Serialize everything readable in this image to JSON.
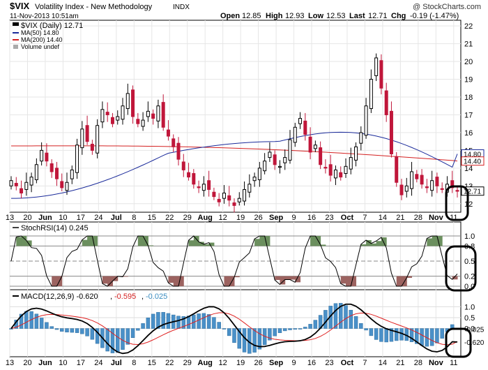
{
  "header": {
    "symbol": "$VIX",
    "name": "Volatility Index - New Methodology",
    "exchange": "INDX",
    "timestamp": "11-Nov-2013 10:51am",
    "watermark": "@ StockCharts.com",
    "open_label": "Open",
    "open": "12.85",
    "high_label": "High",
    "high": "12.93",
    "low_label": "Low",
    "low": "12.53",
    "last_label": "Last",
    "last": "12.71",
    "chg_label": "Chg",
    "chg": "-0.19 (-1.47%)"
  },
  "colors": {
    "up": "#000000",
    "down": "#c0163a",
    "ma50": "#1a2a9a",
    "ma200": "#d42020",
    "rsi_overbought_fill": "#6b8f5e",
    "rsi_oversold_fill": "#9c6360",
    "macd_line": "#000000",
    "signal_line": "#e02020",
    "histogram": "#4a90c8",
    "annotation": "#000000"
  },
  "chart_data": [
    {
      "type": "candlestick",
      "title": "$VIX (Daily) 12.71",
      "legend": [
        "$VIX (Daily) 12.71",
        "MA(50) 14.80",
        "MA(200) 14.40",
        "Volume undef"
      ],
      "x_tick_labels": [
        "13",
        "20",
        "Jun",
        "10",
        "17",
        "24",
        "Jul",
        "8",
        "15",
        "22",
        "29",
        "Aug",
        "12",
        "19",
        "26",
        "Sep",
        "9",
        "16",
        "23",
        "Oct",
        "7",
        "14",
        "21",
        "28",
        "Nov",
        "11"
      ],
      "y_ticks": [
        12,
        13,
        14,
        15,
        16,
        17,
        18,
        19,
        20,
        21,
        22
      ],
      "ylim": [
        11.6,
        22.2
      ],
      "series_summary": {
        "close_approx": [
          13.3,
          13.0,
          12.6,
          13.2,
          13.5,
          14.2,
          15.0,
          14.4,
          13.8,
          13.4,
          12.9,
          13.2,
          13.9,
          15.3,
          16.2,
          15.5,
          15.0,
          16.4,
          17.3,
          17.0,
          16.5,
          16.9,
          17.5,
          18.2,
          16.9,
          16.5,
          16.7,
          17.2,
          16.8,
          17.5,
          16.3,
          15.8,
          15.2,
          14.5,
          13.9,
          13.5,
          13.1,
          12.9,
          13.1,
          12.8,
          12.4,
          12.1,
          12.6,
          12.2,
          11.9,
          12.3,
          12.8,
          13.1,
          13.5,
          14.0,
          14.4,
          14.9,
          14.2,
          14.1,
          14.6,
          15.6,
          16.3,
          16.8,
          15.9,
          14.9,
          15.3,
          14.2,
          14.0,
          13.6,
          13.9,
          13.5,
          14.1,
          14.6,
          15.2,
          16.0,
          17.5,
          19.0,
          20.2,
          18.5,
          17.0,
          14.8,
          13.2,
          12.5,
          13.0,
          13.8,
          13.4,
          13.1,
          12.9,
          13.3,
          13.0,
          12.8,
          13.1,
          12.9,
          12.7
        ],
        "ma50_last": 14.8,
        "ma200_last": 14.4,
        "last": 12.71
      }
    },
    {
      "type": "line",
      "title": "StochRSI(14) 0.245",
      "y_ticks": [
        0.0,
        0.2,
        0.5,
        0.8,
        1.0
      ],
      "y_tick_labels": [
        "0.0",
        "0.2",
        "0.5",
        "0.8",
        "1.0"
      ],
      "ylim": [
        0,
        1
      ],
      "overbought": 0.8,
      "oversold": 0.2,
      "last_value": 0.245
    },
    {
      "type": "line",
      "title": "MACD(12,26,9)",
      "legend": [
        "MACD(12,26,9) -0.620",
        "-0.595",
        "-0.025"
      ],
      "macd_last": -0.62,
      "signal_last": -0.595,
      "histogram_last": -0.025,
      "y_tick_labels": [
        "1.0",
        "0.5",
        "0.0",
        "-0.025",
        "-0.620"
      ],
      "ylim": [
        -1.2,
        1.3
      ]
    }
  ]
}
